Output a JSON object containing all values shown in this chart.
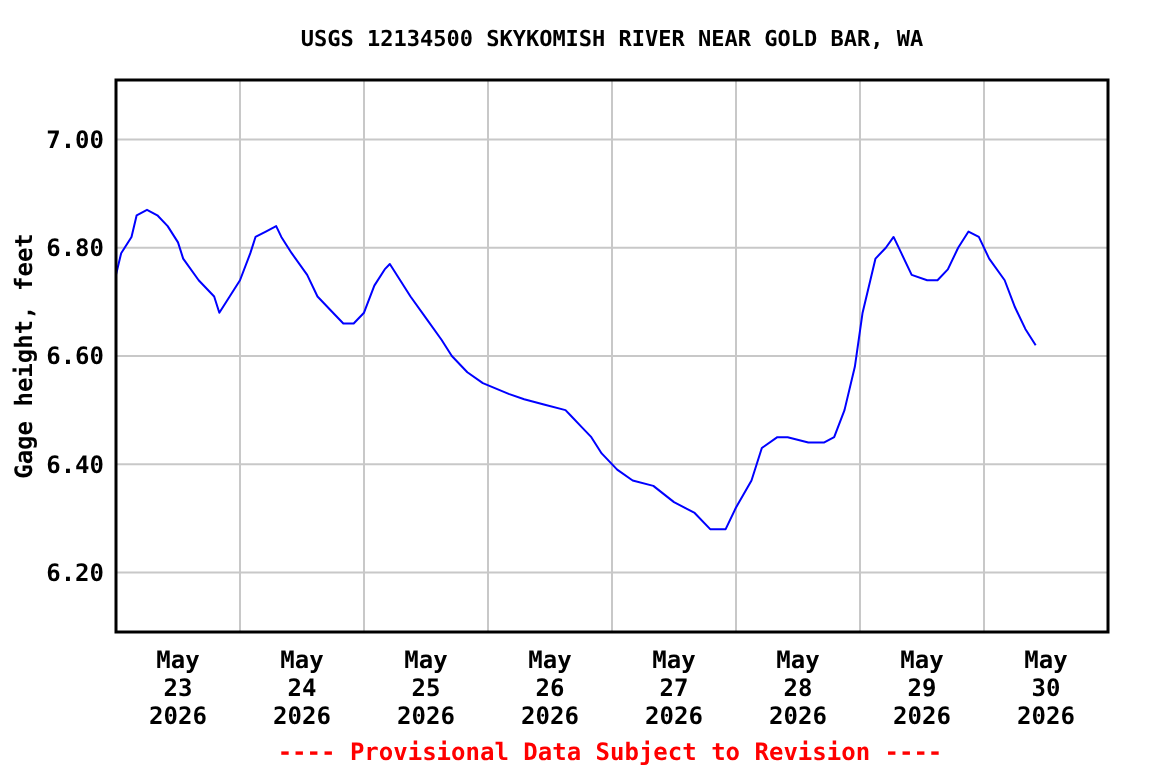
{
  "chart_data": {
    "type": "line",
    "title": "USGS 12134500 SKYKOMISH RIVER NEAR GOLD BAR, WA",
    "ylabel": "Gage height, feet",
    "annotations": [
      "---- Provisional Data Subject to Revision ----"
    ],
    "xlim": [
      "2026-05-23T00:00",
      "2026-05-31T00:00"
    ],
    "xticks": [
      {
        "value": "2026-05-23T12:00",
        "label": "May\n23\n2026"
      },
      {
        "value": "2026-05-24T00:00",
        "label": null
      },
      {
        "value": "2026-05-24T12:00",
        "label": "May\n24\n2026"
      },
      {
        "value": "2026-05-25T00:00",
        "label": null
      },
      {
        "value": "2026-05-25T12:00",
        "label": "May\n25\n2026"
      },
      {
        "value": "2026-05-26T00:00",
        "label": null
      },
      {
        "value": "2026-05-26T12:00",
        "label": "May\n26\n2026"
      },
      {
        "value": "2026-05-27T00:00",
        "label": null
      },
      {
        "value": "2026-05-27T12:00",
        "label": "May\n27\n2026"
      },
      {
        "value": "2026-05-28T00:00",
        "label": null
      },
      {
        "value": "2026-05-28T12:00",
        "label": "May\n28\n2026"
      },
      {
        "value": "2026-05-29T00:00",
        "label": null
      },
      {
        "value": "2026-05-29T12:00",
        "label": "May\n29\n2026"
      },
      {
        "value": "2026-05-30T00:00",
        "label": null
      },
      {
        "value": "2026-05-30T12:00",
        "label": "May\n30\n2026"
      }
    ],
    "ylim": [
      6.09,
      7.11
    ],
    "yticks": [
      {
        "value": 6.2,
        "label": "6.20"
      },
      {
        "value": 6.4,
        "label": "6.40"
      },
      {
        "value": 6.6,
        "label": "6.60"
      },
      {
        "value": 6.8,
        "label": "6.80"
      },
      {
        "value": 7.0,
        "label": "7.00"
      }
    ],
    "grid": "x_at_midnight",
    "series": [
      {
        "color": "#0000ff",
        "x": [
          "2026-05-23T00:00",
          "2026-05-23T01:00",
          "2026-05-23T03:00",
          "2026-05-23T04:00",
          "2026-05-23T06:00",
          "2026-05-23T08:00",
          "2026-05-23T10:00",
          "2026-05-23T12:00",
          "2026-05-23T13:00",
          "2026-05-23T16:00",
          "2026-05-23T19:00",
          "2026-05-23T20:00",
          "2026-05-23T22:00",
          "2026-05-24T00:00",
          "2026-05-24T02:00",
          "2026-05-24T03:00",
          "2026-05-24T05:00",
          "2026-05-24T07:00",
          "2026-05-24T08:00",
          "2026-05-24T10:00",
          "2026-05-24T13:00",
          "2026-05-24T15:00",
          "2026-05-24T18:00",
          "2026-05-24T20:00",
          "2026-05-24T22:00",
          "2026-05-25T00:00",
          "2026-05-25T02:00",
          "2026-05-25T04:00",
          "2026-05-25T05:00",
          "2026-05-25T07:00",
          "2026-05-25T09:00",
          "2026-05-25T12:00",
          "2026-05-25T15:00",
          "2026-05-25T17:00",
          "2026-05-25T20:00",
          "2026-05-25T23:00",
          "2026-05-26T04:00",
          "2026-05-26T07:00",
          "2026-05-26T11:00",
          "2026-05-26T15:00",
          "2026-05-26T16:00",
          "2026-05-26T18:00",
          "2026-05-26T20:00",
          "2026-05-26T22:00",
          "2026-05-27T01:00",
          "2026-05-27T04:00",
          "2026-05-27T08:00",
          "2026-05-27T12:00",
          "2026-05-27T16:00",
          "2026-05-27T19:00",
          "2026-05-27T22:00",
          "2026-05-28T00:00",
          "2026-05-28T03:00",
          "2026-05-28T05:00",
          "2026-05-28T08:00",
          "2026-05-28T10:00",
          "2026-05-28T14:00",
          "2026-05-28T17:00",
          "2026-05-28T19:00",
          "2026-05-28T21:00",
          "2026-05-28T23:00",
          "2026-05-29T00:30",
          "2026-05-29T02:00",
          "2026-05-29T03:00",
          "2026-05-29T05:00",
          "2026-05-29T06:30",
          "2026-05-29T08:00",
          "2026-05-29T10:00",
          "2026-05-29T13:00",
          "2026-05-29T15:00",
          "2026-05-29T17:00",
          "2026-05-29T19:00",
          "2026-05-29T21:00",
          "2026-05-29T23:00",
          "2026-05-30T01:00",
          "2026-05-30T04:00",
          "2026-05-30T06:00",
          "2026-05-30T08:00",
          "2026-05-30T10:00"
        ],
        "values": [
          6.75,
          6.79,
          6.82,
          6.86,
          6.87,
          6.86,
          6.84,
          6.81,
          6.78,
          6.74,
          6.71,
          6.68,
          6.71,
          6.74,
          6.79,
          6.82,
          6.83,
          6.84,
          6.82,
          6.79,
          6.75,
          6.71,
          6.68,
          6.66,
          6.66,
          6.68,
          6.73,
          6.76,
          6.77,
          6.74,
          6.71,
          6.67,
          6.63,
          6.6,
          6.57,
          6.55,
          6.53,
          6.52,
          6.51,
          6.5,
          6.49,
          6.47,
          6.45,
          6.42,
          6.39,
          6.37,
          6.36,
          6.33,
          6.31,
          6.28,
          6.28,
          6.32,
          6.37,
          6.43,
          6.45,
          6.45,
          6.44,
          6.44,
          6.45,
          6.5,
          6.58,
          6.68,
          6.74,
          6.78,
          6.8,
          6.82,
          6.79,
          6.75,
          6.74,
          6.74,
          6.76,
          6.8,
          6.83,
          6.82,
          6.78,
          6.74,
          6.69,
          6.65,
          6.62
        ]
      }
    ]
  }
}
